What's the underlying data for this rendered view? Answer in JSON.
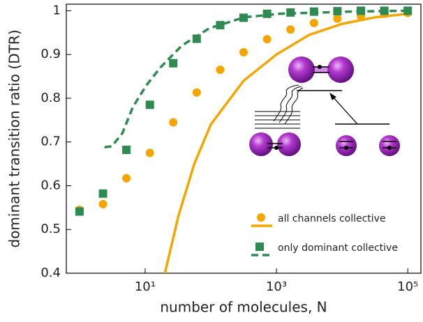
{
  "chart_data": {
    "type": "scatter",
    "x_label": "number of molecules, N",
    "y_label": "dominant transition ratio (DTR)",
    "x": [
      1,
      2.28,
      5.18,
      11.8,
      26.8,
      61,
      139,
      316,
      720,
      1638,
      3728,
      8483,
      19307,
      43940,
      100000
    ],
    "xlim": [
      0.63,
      158489
    ],
    "log_x": true,
    "xticks": [
      {
        "value": 10,
        "label": "10¹"
      },
      {
        "value": 1000,
        "label": "10³"
      },
      {
        "value": 100000,
        "label": "10⁵"
      }
    ],
    "ylim": [
      0.4,
      1.015
    ],
    "yticks": [
      0.4,
      0.5,
      0.6,
      0.7,
      0.8,
      0.9,
      1
    ],
    "legend": "lower right",
    "series": [
      {
        "name": "all channels collective",
        "color": "#f5a500",
        "marker": "circle",
        "dash": false,
        "values": [
          0.545,
          0.558,
          0.617,
          0.675,
          0.745,
          0.813,
          0.865,
          0.905,
          0.935,
          0.957,
          0.972,
          0.982,
          0.988,
          0.993,
          0.995
        ],
        "line_x": [
          20,
          32,
          56,
          100,
          316,
          1000,
          3162,
          10000,
          31623,
          100000
        ],
        "line_values": [
          0.4,
          0.53,
          0.65,
          0.74,
          0.84,
          0.9,
          0.945,
          0.97,
          0.985,
          0.993
        ]
      },
      {
        "name": "only dominant collective",
        "color": "#2e8a50",
        "marker": "square",
        "dash": true,
        "values": [
          0.541,
          0.582,
          0.682,
          0.785,
          0.88,
          0.936,
          0.967,
          0.984,
          0.993,
          0.996,
          0.998,
          0.999,
          1.0,
          1.0,
          1.0
        ],
        "line_x": [
          2.4,
          3.1,
          4.5,
          6.5,
          10.5,
          17,
          36,
          95,
          325,
          1100,
          12600,
          100000
        ],
        "line_values": [
          0.688,
          0.69,
          0.72,
          0.78,
          0.83,
          0.87,
          0.92,
          0.96,
          0.985,
          0.993,
          0.998,
          1.0
        ]
      }
    ]
  }
}
